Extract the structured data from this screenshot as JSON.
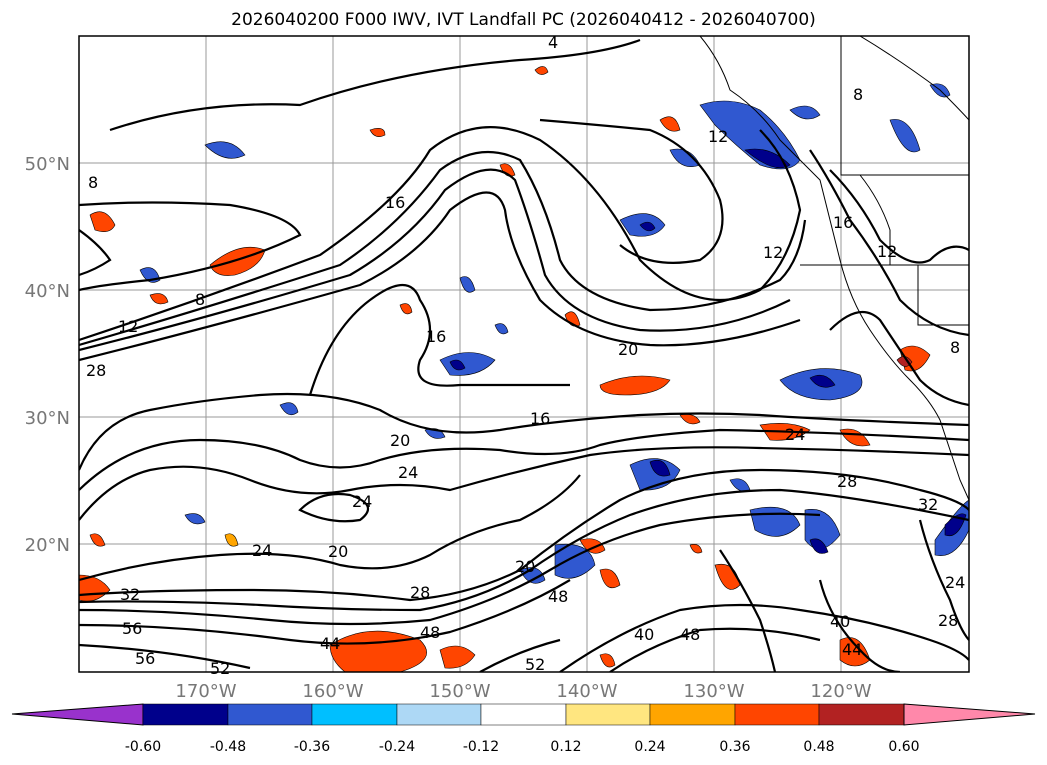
{
  "title": "2026040200 F000 IWV, IVT Landfall PC (2026040412 - 2026040700)",
  "map": {
    "lat_labels": [
      "50°N",
      "40°N",
      "30°N",
      "20°N"
    ],
    "lon_labels": [
      "170°W",
      "160°W",
      "150°W",
      "140°W",
      "130°W",
      "120°W"
    ],
    "contour_labels": [
      "4",
      "8",
      "8",
      "8",
      "8",
      "12",
      "12",
      "12",
      "12",
      "16",
      "16",
      "16",
      "16",
      "20",
      "20",
      "20",
      "20",
      "24",
      "24",
      "24",
      "24",
      "24",
      "28",
      "28",
      "28",
      "28",
      "32",
      "32",
      "40",
      "40",
      "44",
      "44",
      "48",
      "48",
      "48",
      "52",
      "52",
      "56",
      "56"
    ]
  },
  "colorbar": {
    "ticks": [
      "-0.60",
      "-0.48",
      "-0.36",
      "-0.24",
      "-0.12",
      "0.12",
      "0.24",
      "0.36",
      "0.48",
      "0.60"
    ],
    "colors": [
      "#9932cc",
      "#00008b",
      "#3058d0",
      "#00bfff",
      "#add8f5",
      "#ffffff",
      "#ffe680",
      "#ffa500",
      "#ff4500",
      "#b22222",
      "#ff88aa"
    ]
  }
}
